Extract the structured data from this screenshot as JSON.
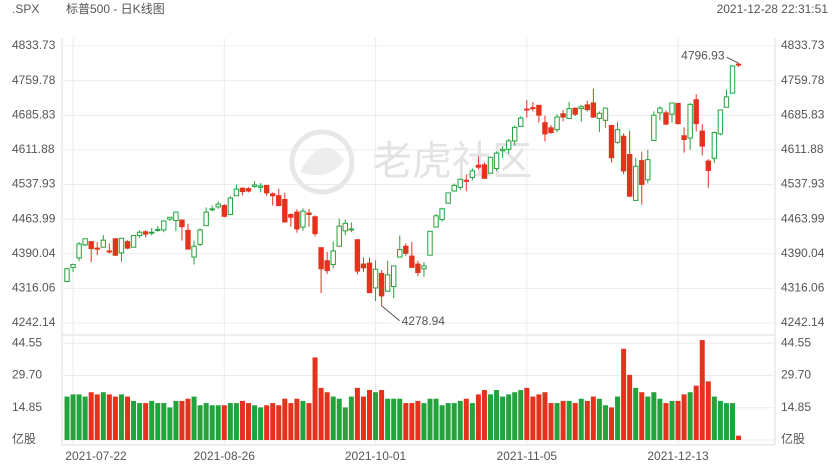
{
  "header": {
    "symbol": ".SPX",
    "title": "标普500 - 日K线图",
    "time": "2021-12-28 22:31:51"
  },
  "chart_data": {
    "type": "candlestick",
    "watermark": "老虎社区",
    "categories": [
      null,
      "2021-07-22",
      null,
      null,
      null,
      null,
      null,
      null,
      null,
      null,
      null,
      null,
      null,
      null,
      null,
      null,
      null,
      null,
      null,
      null,
      null,
      null,
      null,
      null,
      null,
      null,
      "2021-08-26",
      null,
      null,
      null,
      null,
      null,
      null,
      null,
      null,
      null,
      null,
      null,
      null,
      null,
      null,
      null,
      null,
      null,
      null,
      null,
      null,
      null,
      null,
      null,
      null,
      "2021-10-01",
      null,
      null,
      null,
      null,
      null,
      null,
      null,
      null,
      null,
      null,
      null,
      null,
      null,
      null,
      null,
      null,
      null,
      null,
      null,
      null,
      null,
      null,
      null,
      null,
      "2021-11-05",
      null,
      null,
      null,
      null,
      null,
      null,
      null,
      null,
      null,
      null,
      null,
      null,
      null,
      null,
      null,
      null,
      null,
      null,
      null,
      null,
      null,
      null,
      null,
      null,
      "2021-12-13",
      null,
      null,
      null,
      null,
      null,
      null,
      null,
      null,
      null,
      null
    ],
    "open": [
      4331,
      4361,
      4381,
      4409,
      4416,
      4402,
      4404,
      4396,
      4422,
      4392,
      4416,
      4404,
      4429,
      4437,
      4435,
      4442,
      4441,
      4464,
      4461,
      4462,
      4440,
      4383,
      4410,
      4450,
      4484,
      4490,
      4493,
      4474,
      4514,
      4530,
      4529,
      4534,
      4532,
      4536,
      4518,
      4514,
      4506,
      4474,
      4479,
      4447,
      4477,
      4469,
      4403,
      4375,
      4367,
      4406,
      4439,
      4443,
      4420,
      4368,
      4370,
      4317,
      4348,
      4310,
      4320,
      4383,
      4406,
      4385,
      4368,
      4358,
      4387,
      4447,
      4463,
      4498,
      4524,
      4532,
      4547,
      4553,
      4579,
      4580,
      4562,
      4572,
      4610,
      4613,
      4631,
      4662,
      4699,
      4702,
      4707,
      4670,
      4659,
      4655,
      4689,
      4679,
      4701,
      4700,
      4708,
      4712,
      4679,
      4675,
      4664,
      4628,
      4641,
      4602,
      4504,
      4589,
      4548,
      4632,
      4691,
      4691,
      4688,
      4711,
      4642,
      4637,
      4719,
      4652,
      4588,
      4594,
      4646,
      4703,
      4733,
      4795
    ],
    "high": [
      4359,
      4369,
      4415,
      4422,
      4416,
      4415,
      4430,
      4412,
      4423,
      4424,
      4419,
      4430,
      4440,
      4440,
      4445,
      4449,
      4461,
      4468,
      4480,
      4462,
      4454,
      4418,
      4444,
      4489,
      4493,
      4502,
      4496,
      4513,
      4538,
      4532,
      4532,
      4545,
      4541,
      4536,
      4521,
      4529,
      4520,
      4476,
      4485,
      4487,
      4486,
      4472,
      4403,
      4394,
      4416,
      4465,
      4463,
      4457,
      4421,
      4382,
      4382,
      4376,
      4355,
      4375,
      4365,
      4429,
      4412,
      4415,
      4375,
      4372,
      4439,
      4475,
      4488,
      4520,
      4540,
      4551,
      4559,
      4572,
      4598,
      4585,
      4597,
      4608,
      4620,
      4635,
      4664,
      4684,
      4718,
      4714,
      4708,
      4685,
      4665,
      4688,
      4697,
      4714,
      4701,
      4708,
      4717,
      4743,
      4694,
      4702,
      4664,
      4672,
      4647,
      4653,
      4595,
      4608,
      4612,
      4694,
      4705,
      4696,
      4713,
      4711,
      4660,
      4712,
      4731,
      4667,
      4592,
      4651,
      4698,
      4741,
      4791,
      4796.93
    ],
    "low": [
      4329,
      4351,
      4374,
      4406,
      4372,
      4387,
      4403,
      4390,
      4385,
      4373,
      4400,
      4404,
      4424,
      4425,
      4429,
      4437,
      4436,
      4460,
      4438,
      4418,
      4400,
      4367,
      4406,
      4450,
      4480,
      4486,
      4468,
      4474,
      4514,
      4515,
      4521,
      4531,
      4521,
      4513,
      4493,
      4493,
      4457,
      4448,
      4435,
      4439,
      4448,
      4427,
      4306,
      4347,
      4359,
      4406,
      4430,
      4436,
      4346,
      4351,
      4306,
      4289,
      4278.94,
      4310,
      4295,
      4383,
      4386,
      4360,
      4342,
      4341,
      4387,
      4447,
      4459,
      4497,
      4524,
      4526,
      4524,
      4547,
      4570,
      4551,
      4562,
      4567,
      4595,
      4604,
      4621,
      4662,
      4681,
      4694,
      4670,
      4630,
      4646,
      4650,
      4673,
      4679,
      4684,
      4672,
      4694,
      4680,
      4650,
      4659,
      4585,
      4625,
      4560,
      4511,
      4504,
      4495,
      4540,
      4632,
      4675,
      4665,
      4670,
      4666,
      4606,
      4612,
      4651,
      4600,
      4531,
      4584,
      4643,
      4703,
      4733,
      4789
    ],
    "close": [
      4358,
      4367,
      4411,
      4422,
      4401,
      4400,
      4419,
      4395,
      4387,
      4423,
      4402,
      4429,
      4436,
      4432,
      4436,
      4442,
      4460,
      4468,
      4479,
      4448,
      4400,
      4406,
      4441,
      4479,
      4486,
      4496,
      4470,
      4509,
      4528,
      4523,
      4524,
      4537,
      4535,
      4520,
      4514,
      4493,
      4458,
      4468,
      4443,
      4481,
      4474,
      4433,
      4358,
      4354,
      4396,
      4449,
      4455,
      4443,
      4353,
      4360,
      4307,
      4357,
      4300,
      4345,
      4364,
      4399,
      4391,
      4361,
      4350,
      4364,
      4438,
      4471,
      4486,
      4520,
      4536,
      4549,
      4545,
      4567,
      4575,
      4551,
      4596,
      4605,
      4613,
      4631,
      4660,
      4680,
      4697,
      4701,
      4686,
      4646,
      4649,
      4682,
      4682,
      4700,
      4688,
      4704,
      4698,
      4682,
      4690,
      4701,
      4595,
      4655,
      4567,
      4513,
      4577,
      4538,
      4591,
      4686,
      4701,
      4667,
      4712,
      4668,
      4634,
      4709,
      4668,
      4620,
      4568,
      4649,
      4697,
      4725,
      4791,
      4793
    ],
    "up_color": "#22a33c",
    "down_color": "#e5321d",
    "ylim": [
      4242.14,
      4833.73
    ],
    "yticks": [
      4242.14,
      4316.06,
      4390.04,
      4463.99,
      4537.93,
      4611.88,
      4685.83,
      4759.78,
      4833.73
    ],
    "grid": true,
    "volume": {
      "values": [
        20,
        21,
        21,
        20,
        22,
        21,
        22,
        21,
        20,
        21,
        20,
        18,
        17,
        17,
        18,
        17,
        17,
        15,
        18,
        18,
        19,
        20,
        16,
        17,
        16,
        16,
        16,
        17,
        17,
        18,
        17,
        16,
        15,
        16,
        17,
        16,
        19,
        17,
        19,
        18,
        17,
        38,
        24,
        22,
        20,
        19,
        15,
        20,
        24,
        20,
        23,
        22,
        23,
        19,
        19,
        19,
        17,
        17,
        18,
        17,
        19,
        19,
        16,
        17,
        17,
        18,
        19,
        17,
        21,
        23,
        21,
        23,
        20,
        21,
        22,
        23,
        24,
        20,
        21,
        22,
        17,
        17,
        18,
        18,
        17,
        19,
        18,
        20,
        19,
        16,
        15,
        20,
        42,
        30,
        24,
        22,
        20,
        22,
        19,
        17,
        18,
        18,
        21,
        22,
        25,
        46,
        27,
        20,
        18,
        17,
        17,
        2
      ],
      "ylim": [
        0,
        46.5
      ],
      "yticks": [
        {
          "value": 0,
          "label": "亿股"
        },
        14.85,
        {
          "value": 29.7,
          "label": "29.70"
        },
        44.55
      ]
    }
  }
}
